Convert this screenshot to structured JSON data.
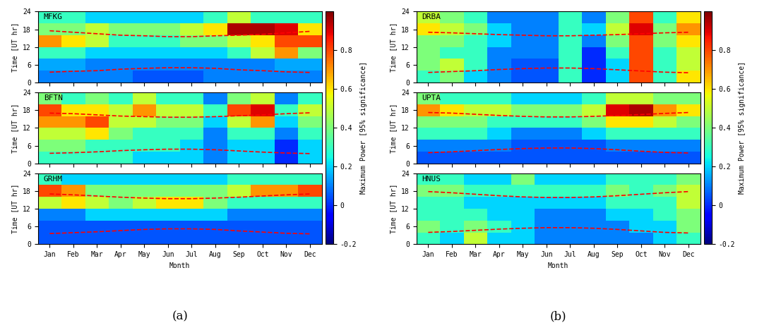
{
  "chart_data": [
    {
      "label": "(a)",
      "colorbar_label": "Maximum Power [95% significance]",
      "colorbar_lim": [
        -0.2,
        1.0
      ],
      "colorbar_ticks": [
        -0.2,
        0,
        0.2,
        0.4,
        0.6,
        0.8
      ],
      "charts": [
        {
          "type": "heatmap",
          "title": "MFKG",
          "ylabel": "Time [UT hr]",
          "tick_labels": "y",
          "categories": [
            "Jan",
            "Feb",
            "Mar",
            "Apr",
            "May",
            "Jun",
            "Jul",
            "Aug",
            "Sep",
            "Oct",
            "Nov",
            "Dec"
          ],
          "ylim": [
            0,
            24
          ],
          "yticks": [
            0,
            6,
            12,
            18,
            24
          ],
          "cell_edges_y": [
            0,
            4,
            8,
            12,
            16,
            20,
            24
          ],
          "cells": [
            [
              0.1,
              0.1,
              0.1,
              0.1,
              0.05,
              0.05,
              0.05,
              0.1,
              0.1,
              0.1,
              0.1,
              0.1
            ],
            [
              0.15,
              0.15,
              0.1,
              0.1,
              0.1,
              0.1,
              0.1,
              0.1,
              0.1,
              0.1,
              0.15,
              0.15
            ],
            [
              0.3,
              0.3,
              0.2,
              0.2,
              0.2,
              0.2,
              0.2,
              0.2,
              0.3,
              0.5,
              0.7,
              0.4
            ],
            [
              0.7,
              0.6,
              0.5,
              0.3,
              0.3,
              0.3,
              0.4,
              0.4,
              0.5,
              0.6,
              0.8,
              0.8
            ],
            [
              0.4,
              0.4,
              0.5,
              0.4,
              0.4,
              0.4,
              0.5,
              0.6,
              0.95,
              0.95,
              0.9,
              0.6
            ],
            [
              0.3,
              0.3,
              0.2,
              0.2,
              0.2,
              0.2,
              0.2,
              0.3,
              0.5,
              0.3,
              0.3,
              0.3
            ]
          ],
          "lines": [
            {
              "color": "red",
              "line_style": "dashed",
              "values": [
                17.5,
                17,
                16.5,
                16,
                15.8,
                15.5,
                15.5,
                15.8,
                16,
                16.3,
                16.8,
                17.3
              ]
            },
            {
              "color": "red",
              "line_style": "dashed",
              "values": [
                3.5,
                3.8,
                4,
                4.5,
                4.8,
                5,
                5,
                4.8,
                4.3,
                4,
                3.6,
                3.4
              ]
            }
          ]
        },
        {
          "type": "heatmap",
          "title": "BFTN",
          "ylabel": "Time [UT hr]",
          "tick_labels": "y",
          "categories": [
            "Jan",
            "Feb",
            "Mar",
            "Apr",
            "May",
            "Jun",
            "Jul",
            "Aug",
            "Sep",
            "Oct",
            "Nov",
            "Dec"
          ],
          "ylim": [
            0,
            24
          ],
          "yticks": [
            0,
            6,
            12,
            18,
            24
          ],
          "cell_edges_y": [
            0,
            4,
            8,
            12,
            16,
            20,
            24
          ],
          "cells": [
            [
              0.3,
              0.3,
              0.3,
              0.3,
              0.2,
              0.2,
              0.2,
              0.1,
              0.2,
              0.2,
              0.0,
              0.2
            ],
            [
              0.4,
              0.4,
              0.3,
              0.3,
              0.3,
              0.3,
              0.2,
              0.1,
              0.2,
              0.2,
              0.0,
              0.2
            ],
            [
              0.5,
              0.5,
              0.6,
              0.4,
              0.3,
              0.3,
              0.3,
              0.1,
              0.3,
              0.3,
              0.1,
              0.3
            ],
            [
              0.7,
              0.7,
              0.8,
              0.5,
              0.5,
              0.4,
              0.4,
              0.2,
              0.5,
              0.7,
              0.2,
              0.4
            ],
            [
              0.8,
              0.6,
              0.6,
              0.5,
              0.7,
              0.5,
              0.5,
              0.3,
              0.8,
              0.9,
              0.3,
              0.5
            ],
            [
              0.4,
              0.3,
              0.4,
              0.3,
              0.5,
              0.3,
              0.3,
              0.1,
              0.4,
              0.5,
              0.1,
              0.3
            ]
          ],
          "lines": [
            {
              "color": "red",
              "line_style": "dashed",
              "values": [
                17,
                16.8,
                16.4,
                16,
                15.8,
                15.6,
                15.6,
                15.8,
                16.1,
                16.4,
                16.8,
                17.1
              ]
            },
            {
              "color": "red",
              "line_style": "dashed",
              "values": [
                3.4,
                3.6,
                3.9,
                4.3,
                4.6,
                4.8,
                4.8,
                4.6,
                4.2,
                3.8,
                3.5,
                3.3
              ]
            }
          ]
        },
        {
          "type": "heatmap",
          "title": "GRHM",
          "ylabel": "Time [UT hr]",
          "xlabel": "Month",
          "categories": [
            "Jan",
            "Feb",
            "Mar",
            "Apr",
            "May",
            "Jun",
            "Jul",
            "Aug",
            "Sep",
            "Oct",
            "Nov",
            "Dec"
          ],
          "ylim": [
            0,
            24
          ],
          "yticks": [
            0,
            6,
            12,
            18,
            24
          ],
          "cell_edges_y": [
            0,
            4,
            8,
            12,
            16,
            20,
            24
          ],
          "cells": [
            [
              0.05,
              0.05,
              0.05,
              0.05,
              0.05,
              0.05,
              0.05,
              0.05,
              0.05,
              0.05,
              0.05,
              0.05
            ],
            [
              0.05,
              0.05,
              0.05,
              0.05,
              0.05,
              0.05,
              0.05,
              0.05,
              0.05,
              0.05,
              0.05,
              0.05
            ],
            [
              0.1,
              0.1,
              0.2,
              0.2,
              0.2,
              0.2,
              0.2,
              0.2,
              0.1,
              0.1,
              0.1,
              0.1
            ],
            [
              0.5,
              0.6,
              0.5,
              0.4,
              0.5,
              0.6,
              0.6,
              0.4,
              0.3,
              0.3,
              0.3,
              0.3
            ],
            [
              0.8,
              0.7,
              0.4,
              0.4,
              0.4,
              0.4,
              0.4,
              0.4,
              0.5,
              0.7,
              0.7,
              0.8
            ],
            [
              0.3,
              0.2,
              0.2,
              0.2,
              0.2,
              0.2,
              0.2,
              0.2,
              0.3,
              0.3,
              0.3,
              0.3
            ]
          ],
          "lines": [
            {
              "color": "red",
              "line_style": "dashed",
              "values": [
                17,
                16.7,
                16.3,
                15.9,
                15.6,
                15.4,
                15.4,
                15.6,
                15.9,
                16.3,
                16.7,
                17
              ]
            },
            {
              "color": "red",
              "line_style": "dashed",
              "values": [
                3.6,
                3.9,
                4.2,
                4.6,
                5,
                5.2,
                5.2,
                5,
                4.5,
                4.1,
                3.7,
                3.5
              ]
            }
          ]
        }
      ]
    },
    {
      "label": "(b)",
      "colorbar_label": "Maximum Power [95% significance]",
      "colorbar_lim": [
        -0.2,
        1.0
      ],
      "colorbar_ticks": [
        -0.2,
        0,
        0.2,
        0.4,
        0.6,
        0.8
      ],
      "charts": [
        {
          "type": "heatmap",
          "title": "DRBA",
          "ylabel": "Time [UT hr]",
          "tick_labels": "y",
          "categories": [
            "Jan",
            "Feb",
            "Mar",
            "Apr",
            "May",
            "Jun",
            "Jul",
            "Aug",
            "Sep",
            "Oct",
            "Nov",
            "Dec"
          ],
          "ylim": [
            0,
            24
          ],
          "yticks": [
            0,
            6,
            12,
            18,
            24
          ],
          "cell_edges_y": [
            0,
            4,
            8,
            12,
            16,
            20,
            24
          ],
          "cells": [
            [
              0.3,
              0.4,
              0.2,
              0.1,
              0.05,
              0.05,
              0.3,
              0.0,
              0.2,
              0.8,
              0.3,
              0.6
            ],
            [
              0.4,
              0.5,
              0.3,
              0.1,
              0.05,
              0.05,
              0.3,
              0.0,
              0.2,
              0.8,
              0.3,
              0.5
            ],
            [
              0.4,
              0.3,
              0.3,
              0.1,
              0.1,
              0.1,
              0.3,
              0.0,
              0.3,
              0.8,
              0.3,
              0.5
            ],
            [
              0.4,
              0.4,
              0.3,
              0.2,
              0.1,
              0.1,
              0.3,
              0.1,
              0.4,
              0.8,
              0.4,
              0.6
            ],
            [
              0.6,
              0.5,
              0.4,
              0.2,
              0.1,
              0.1,
              0.3,
              0.2,
              0.5,
              0.9,
              0.4,
              0.7
            ],
            [
              0.5,
              0.4,
              0.3,
              0.1,
              0.1,
              0.1,
              0.3,
              0.1,
              0.4,
              0.8,
              0.3,
              0.6
            ]
          ],
          "lines": [
            {
              "color": "red",
              "line_style": "dashed",
              "values": [
                17,
                16.8,
                16.5,
                16.2,
                16,
                15.8,
                15.8,
                16,
                16.2,
                16.5,
                16.8,
                17
              ]
            },
            {
              "color": "red",
              "line_style": "dashed",
              "values": [
                3.4,
                3.7,
                4,
                4.4,
                4.7,
                4.9,
                4.9,
                4.7,
                4.3,
                3.9,
                3.5,
                3.3
              ]
            }
          ]
        },
        {
          "type": "heatmap",
          "title": "UPTA",
          "ylabel": "Time [UT hr]",
          "tick_labels": "y",
          "categories": [
            "Jan",
            "Feb",
            "Mar",
            "Apr",
            "May",
            "Jun",
            "Jul",
            "Aug",
            "Sep",
            "Oct",
            "Nov",
            "Dec"
          ],
          "ylim": [
            0,
            24
          ],
          "yticks": [
            0,
            6,
            12,
            18,
            24
          ],
          "cell_edges_y": [
            0,
            4,
            8,
            12,
            16,
            20,
            24
          ],
          "cells": [
            [
              0.05,
              0.05,
              0.05,
              0.05,
              0.05,
              0.05,
              0.05,
              0.05,
              0.05,
              0.05,
              0.05,
              0.05
            ],
            [
              0.1,
              0.1,
              0.1,
              0.1,
              0.05,
              0.05,
              0.05,
              0.05,
              0.1,
              0.1,
              0.1,
              0.1
            ],
            [
              0.3,
              0.3,
              0.3,
              0.2,
              0.1,
              0.1,
              0.1,
              0.2,
              0.3,
              0.3,
              0.3,
              0.3
            ],
            [
              0.4,
              0.4,
              0.4,
              0.3,
              0.3,
              0.3,
              0.3,
              0.4,
              0.6,
              0.6,
              0.5,
              0.4
            ],
            [
              0.7,
              0.6,
              0.5,
              0.5,
              0.4,
              0.4,
              0.4,
              0.5,
              0.9,
              0.95,
              0.7,
              0.6
            ],
            [
              0.4,
              0.3,
              0.3,
              0.3,
              0.2,
              0.2,
              0.2,
              0.3,
              0.5,
              0.5,
              0.4,
              0.4
            ]
          ],
          "lines": [
            {
              "color": "red",
              "line_style": "dashed",
              "values": [
                17.2,
                17,
                16.6,
                16.2,
                15.9,
                15.7,
                15.7,
                15.9,
                16.2,
                16.5,
                16.9,
                17.2
              ]
            },
            {
              "color": "red",
              "line_style": "dashed",
              "values": [
                3.6,
                3.9,
                4.3,
                4.7,
                5,
                5.2,
                5.2,
                5,
                4.6,
                4.1,
                3.7,
                3.5
              ]
            }
          ]
        },
        {
          "type": "heatmap",
          "title": "HNUS",
          "ylabel": "Time [UT hr]",
          "xlabel": "Month",
          "categories": [
            "Jan",
            "Feb",
            "Mar",
            "Apr",
            "May",
            "Jun",
            "Jul",
            "Aug",
            "Sep",
            "Oct",
            "Nov",
            "Dec"
          ],
          "ylim": [
            0,
            24
          ],
          "yticks": [
            0,
            6,
            12,
            18,
            24
          ],
          "cell_edges_y": [
            0,
            4,
            8,
            12,
            16,
            20,
            24
          ],
          "cells": [
            [
              0.3,
              0.2,
              0.5,
              0.2,
              0.2,
              0.1,
              0.1,
              0.1,
              0.1,
              0.1,
              0.2,
              0.3
            ],
            [
              0.4,
              0.3,
              0.4,
              0.3,
              0.2,
              0.1,
              0.1,
              0.1,
              0.1,
              0.2,
              0.2,
              0.4
            ],
            [
              0.3,
              0.3,
              0.3,
              0.2,
              0.2,
              0.1,
              0.1,
              0.1,
              0.2,
              0.2,
              0.3,
              0.4
            ],
            [
              0.3,
              0.3,
              0.2,
              0.2,
              0.2,
              0.2,
              0.2,
              0.2,
              0.3,
              0.3,
              0.3,
              0.5
            ],
            [
              0.4,
              0.4,
              0.3,
              0.3,
              0.3,
              0.3,
              0.3,
              0.3,
              0.4,
              0.3,
              0.4,
              0.5
            ],
            [
              0.3,
              0.3,
              0.2,
              0.2,
              0.4,
              0.2,
              0.2,
              0.2,
              0.3,
              0.3,
              0.3,
              0.4
            ]
          ],
          "lines": [
            {
              "color": "red",
              "line_style": "dashed",
              "values": [
                17.8,
                17.4,
                16.9,
                16.4,
                16,
                15.8,
                15.8,
                16,
                16.4,
                16.9,
                17.4,
                17.8
              ]
            },
            {
              "color": "red",
              "line_style": "dashed",
              "values": [
                4,
                4.3,
                4.7,
                5.1,
                5.4,
                5.6,
                5.6,
                5.4,
                5,
                4.5,
                4,
                3.8
              ]
            }
          ]
        }
      ]
    }
  ]
}
